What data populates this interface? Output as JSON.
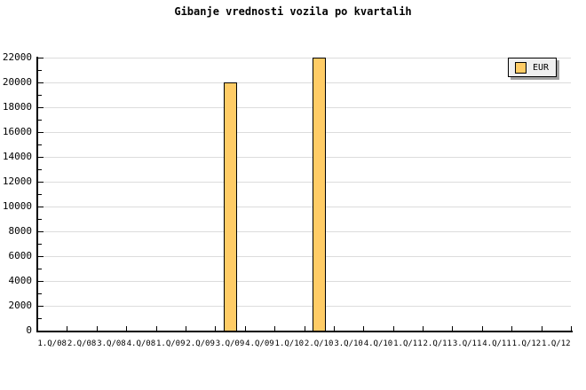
{
  "chart_data": {
    "type": "bar",
    "title": "Gibanje vrednosti vozila po kvartalih",
    "categories": [
      "1.Q/08",
      "2.Q/08",
      "3.Q/08",
      "4.Q/08",
      "1.Q/09",
      "2.Q/09",
      "3.Q/09",
      "4.Q/09",
      "1.Q/10",
      "2.Q/10",
      "3.Q/10",
      "4.Q/10",
      "1.Q/11",
      "2.Q/11",
      "3.Q/11",
      "4.Q/11",
      "1.Q/12",
      "1.Q/12"
    ],
    "series": [
      {
        "name": "EUR",
        "values": [
          null,
          null,
          null,
          null,
          null,
          null,
          20000,
          null,
          null,
          22000,
          null,
          null,
          null,
          null,
          null,
          null,
          null,
          null
        ]
      }
    ],
    "xlabel": "",
    "ylabel": "",
    "ylim": [
      0,
      22000
    ],
    "y_major_step": 2000,
    "y_minor_step": 1000,
    "grid": true,
    "legend_position": "top-right",
    "colors": {
      "bar_fill": "#FFCC66",
      "bar_border": "#000000",
      "gridline": "#DCDCDC",
      "axis": "#000000",
      "legend_bg": "#EFEFEF",
      "legend_shadow": "#A0A0A0",
      "text": "#000000"
    }
  }
}
